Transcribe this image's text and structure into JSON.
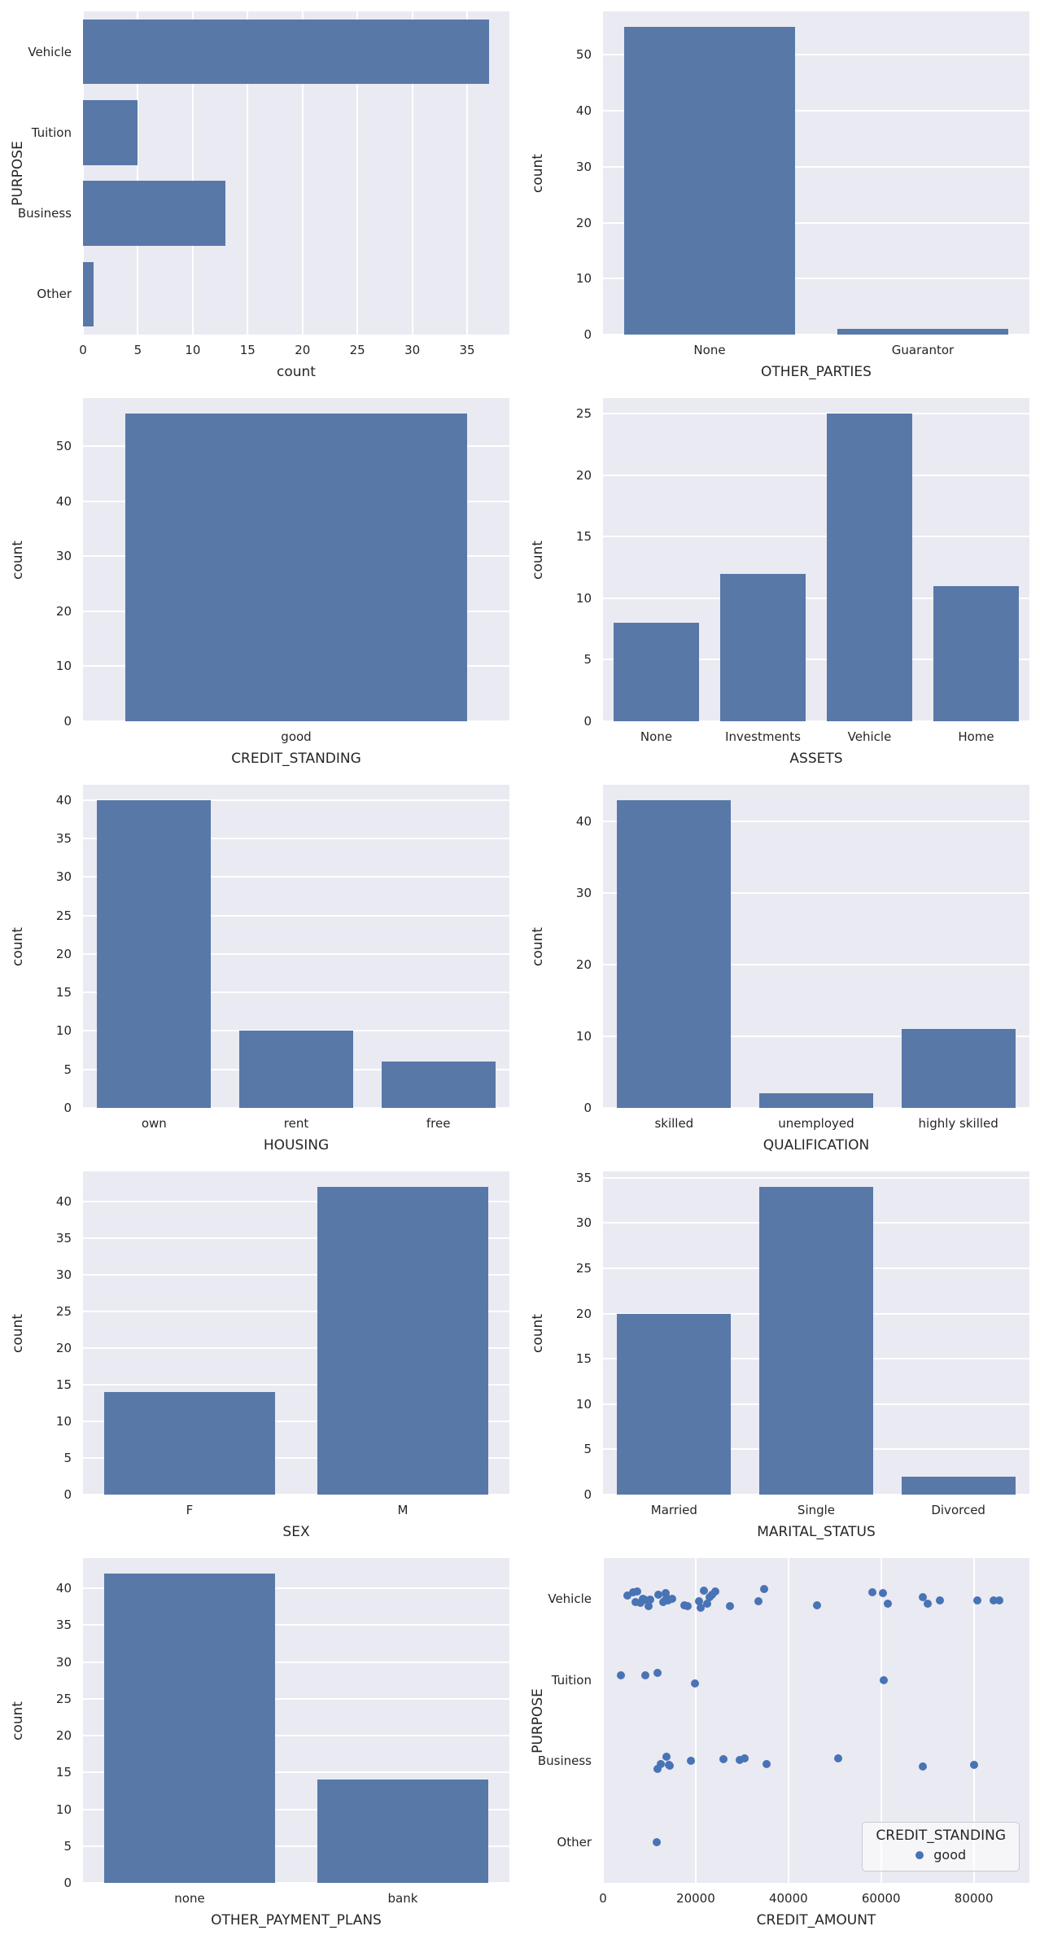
{
  "figure": {
    "background": "#ffffff",
    "axes_background": "#eaeaf2",
    "grid_color": "#ffffff",
    "bar_color": "#5878a8",
    "point_color": "#4873b5",
    "text_color": "#262626"
  },
  "chart_data": [
    {
      "type": "bar",
      "orientation": "horizontal",
      "categories": [
        "Vehicle",
        "Tuition",
        "Business",
        "Other"
      ],
      "values": [
        37,
        5,
        13,
        1
      ],
      "xlabel": "count",
      "ylabel": "PURPOSE",
      "xticks": [
        0,
        5,
        10,
        15,
        20,
        25,
        30,
        35
      ],
      "xlim": [
        0,
        38.85
      ],
      "grid": "vertical"
    },
    {
      "type": "bar",
      "orientation": "vertical",
      "categories": [
        "None",
        "Guarantor"
      ],
      "values": [
        55,
        1
      ],
      "xlabel": "OTHER_PARTIES",
      "ylabel": "count",
      "yticks": [
        0,
        10,
        20,
        30,
        40,
        50
      ],
      "ylim": [
        0,
        57.75
      ],
      "grid": "horizontal"
    },
    {
      "type": "bar",
      "orientation": "vertical",
      "categories": [
        "good"
      ],
      "values": [
        56
      ],
      "xlabel": "CREDIT_STANDING",
      "ylabel": "count",
      "yticks": [
        0,
        10,
        20,
        30,
        40,
        50
      ],
      "ylim": [
        0,
        58.8
      ],
      "grid": "horizontal"
    },
    {
      "type": "bar",
      "orientation": "vertical",
      "categories": [
        "None",
        "Investments",
        "Vehicle",
        "Home"
      ],
      "values": [
        8,
        12,
        25,
        11
      ],
      "xlabel": "ASSETS",
      "ylabel": "count",
      "yticks": [
        0,
        5,
        10,
        15,
        20,
        25
      ],
      "ylim": [
        0,
        26.25
      ],
      "grid": "horizontal"
    },
    {
      "type": "bar",
      "orientation": "vertical",
      "categories": [
        "own",
        "rent",
        "free"
      ],
      "values": [
        40,
        10,
        6
      ],
      "xlabel": "HOUSING",
      "ylabel": "count",
      "yticks": [
        0,
        5,
        10,
        15,
        20,
        25,
        30,
        35,
        40
      ],
      "ylim": [
        0,
        42
      ],
      "grid": "horizontal"
    },
    {
      "type": "bar",
      "orientation": "vertical",
      "categories": [
        "skilled",
        "unemployed",
        "highly skilled"
      ],
      "values": [
        43,
        2,
        11
      ],
      "xlabel": "QUALIFICATION",
      "ylabel": "count",
      "yticks": [
        0,
        10,
        20,
        30,
        40
      ],
      "ylim": [
        0,
        45.15
      ],
      "grid": "horizontal"
    },
    {
      "type": "bar",
      "orientation": "vertical",
      "categories": [
        "F",
        "M"
      ],
      "values": [
        14,
        42
      ],
      "xlabel": "SEX",
      "ylabel": "count",
      "yticks": [
        0,
        5,
        10,
        15,
        20,
        25,
        30,
        35,
        40
      ],
      "ylim": [
        0,
        44.1
      ],
      "grid": "horizontal"
    },
    {
      "type": "bar",
      "orientation": "vertical",
      "categories": [
        "Married",
        "Single",
        "Divorced"
      ],
      "values": [
        20,
        34,
        2
      ],
      "xlabel": "MARITAL_STATUS",
      "ylabel": "count",
      "yticks": [
        0,
        5,
        10,
        15,
        20,
        25,
        30,
        35
      ],
      "ylim": [
        0,
        35.7
      ],
      "grid": "horizontal"
    },
    {
      "type": "bar",
      "orientation": "vertical",
      "categories": [
        "none",
        "bank"
      ],
      "values": [
        42,
        14
      ],
      "xlabel": "OTHER_PAYMENT_PLANS",
      "ylabel": "count",
      "yticks": [
        0,
        5,
        10,
        15,
        20,
        25,
        30,
        35,
        40
      ],
      "ylim": [
        0,
        44.1
      ],
      "grid": "horizontal"
    },
    {
      "type": "scatter",
      "categories": [
        "Vehicle",
        "Tuition",
        "Business",
        "Other"
      ],
      "xlabel": "CREDIT_AMOUNT",
      "ylabel": "PURPOSE",
      "xticks": [
        0,
        20000,
        40000,
        60000,
        80000
      ],
      "xlim": [
        0,
        92000
      ],
      "grid": "vertical",
      "legend": {
        "title": "CREDIT_STANDING",
        "items": [
          {
            "label": "good"
          }
        ]
      },
      "series": [
        {
          "name": "good",
          "points": {
            "Vehicle": [
              [
                5200,
                -4
              ],
              [
                6550,
                -8
              ],
              [
                7070,
                4
              ],
              [
                7420,
                -9
              ],
              [
                8100,
                5
              ],
              [
                8540,
                0
              ],
              [
                9000,
                1
              ],
              [
                9880,
                9
              ],
              [
                10170,
                1
              ],
              [
                11930,
                -5
              ],
              [
                12980,
                4
              ],
              [
                13500,
                -7
              ],
              [
                13680,
                -1
              ],
              [
                13980,
                2
              ],
              [
                14960,
                0
              ],
              [
                17480,
                8
              ],
              [
                18240,
                9
              ],
              [
                20700,
                3
              ],
              [
                21000,
                11
              ],
              [
                21750,
                -10
              ],
              [
                22400,
                6
              ],
              [
                22930,
                -2
              ],
              [
                23500,
                -5
              ],
              [
                24200,
                -9
              ],
              [
                27400,
                9
              ],
              [
                33560,
                3
              ],
              [
                34730,
                -12
              ],
              [
                46130,
                8
              ],
              [
                58100,
                -8
              ],
              [
                60450,
                -7
              ],
              [
                61500,
                6
              ],
              [
                68930,
                -2
              ],
              [
                70100,
                6
              ],
              [
                72600,
                2
              ],
              [
                80800,
                2
              ],
              [
                84300,
                2
              ],
              [
                85460,
                2
              ]
            ],
            "Tuition": [
              [
                3870,
                -6
              ],
              [
                9100,
                -6
              ],
              [
                11730,
                -9
              ],
              [
                19900,
                4
              ],
              [
                60500,
                0
              ]
            ],
            "Business": [
              [
                11730,
                10
              ],
              [
                12490,
                4
              ],
              [
                13770,
                -5
              ],
              [
                14180,
                5
              ],
              [
                14470,
                6
              ],
              [
                19010,
                0
              ],
              [
                26000,
                -2
              ],
              [
                29490,
                -1
              ],
              [
                30540,
                -3
              ],
              [
                35310,
                4
              ],
              [
                50740,
                -3
              ],
              [
                68970,
                7
              ],
              [
                80030,
                5
              ]
            ],
            "Other": [
              [
                11620,
                0
              ]
            ]
          }
        }
      ]
    }
  ]
}
